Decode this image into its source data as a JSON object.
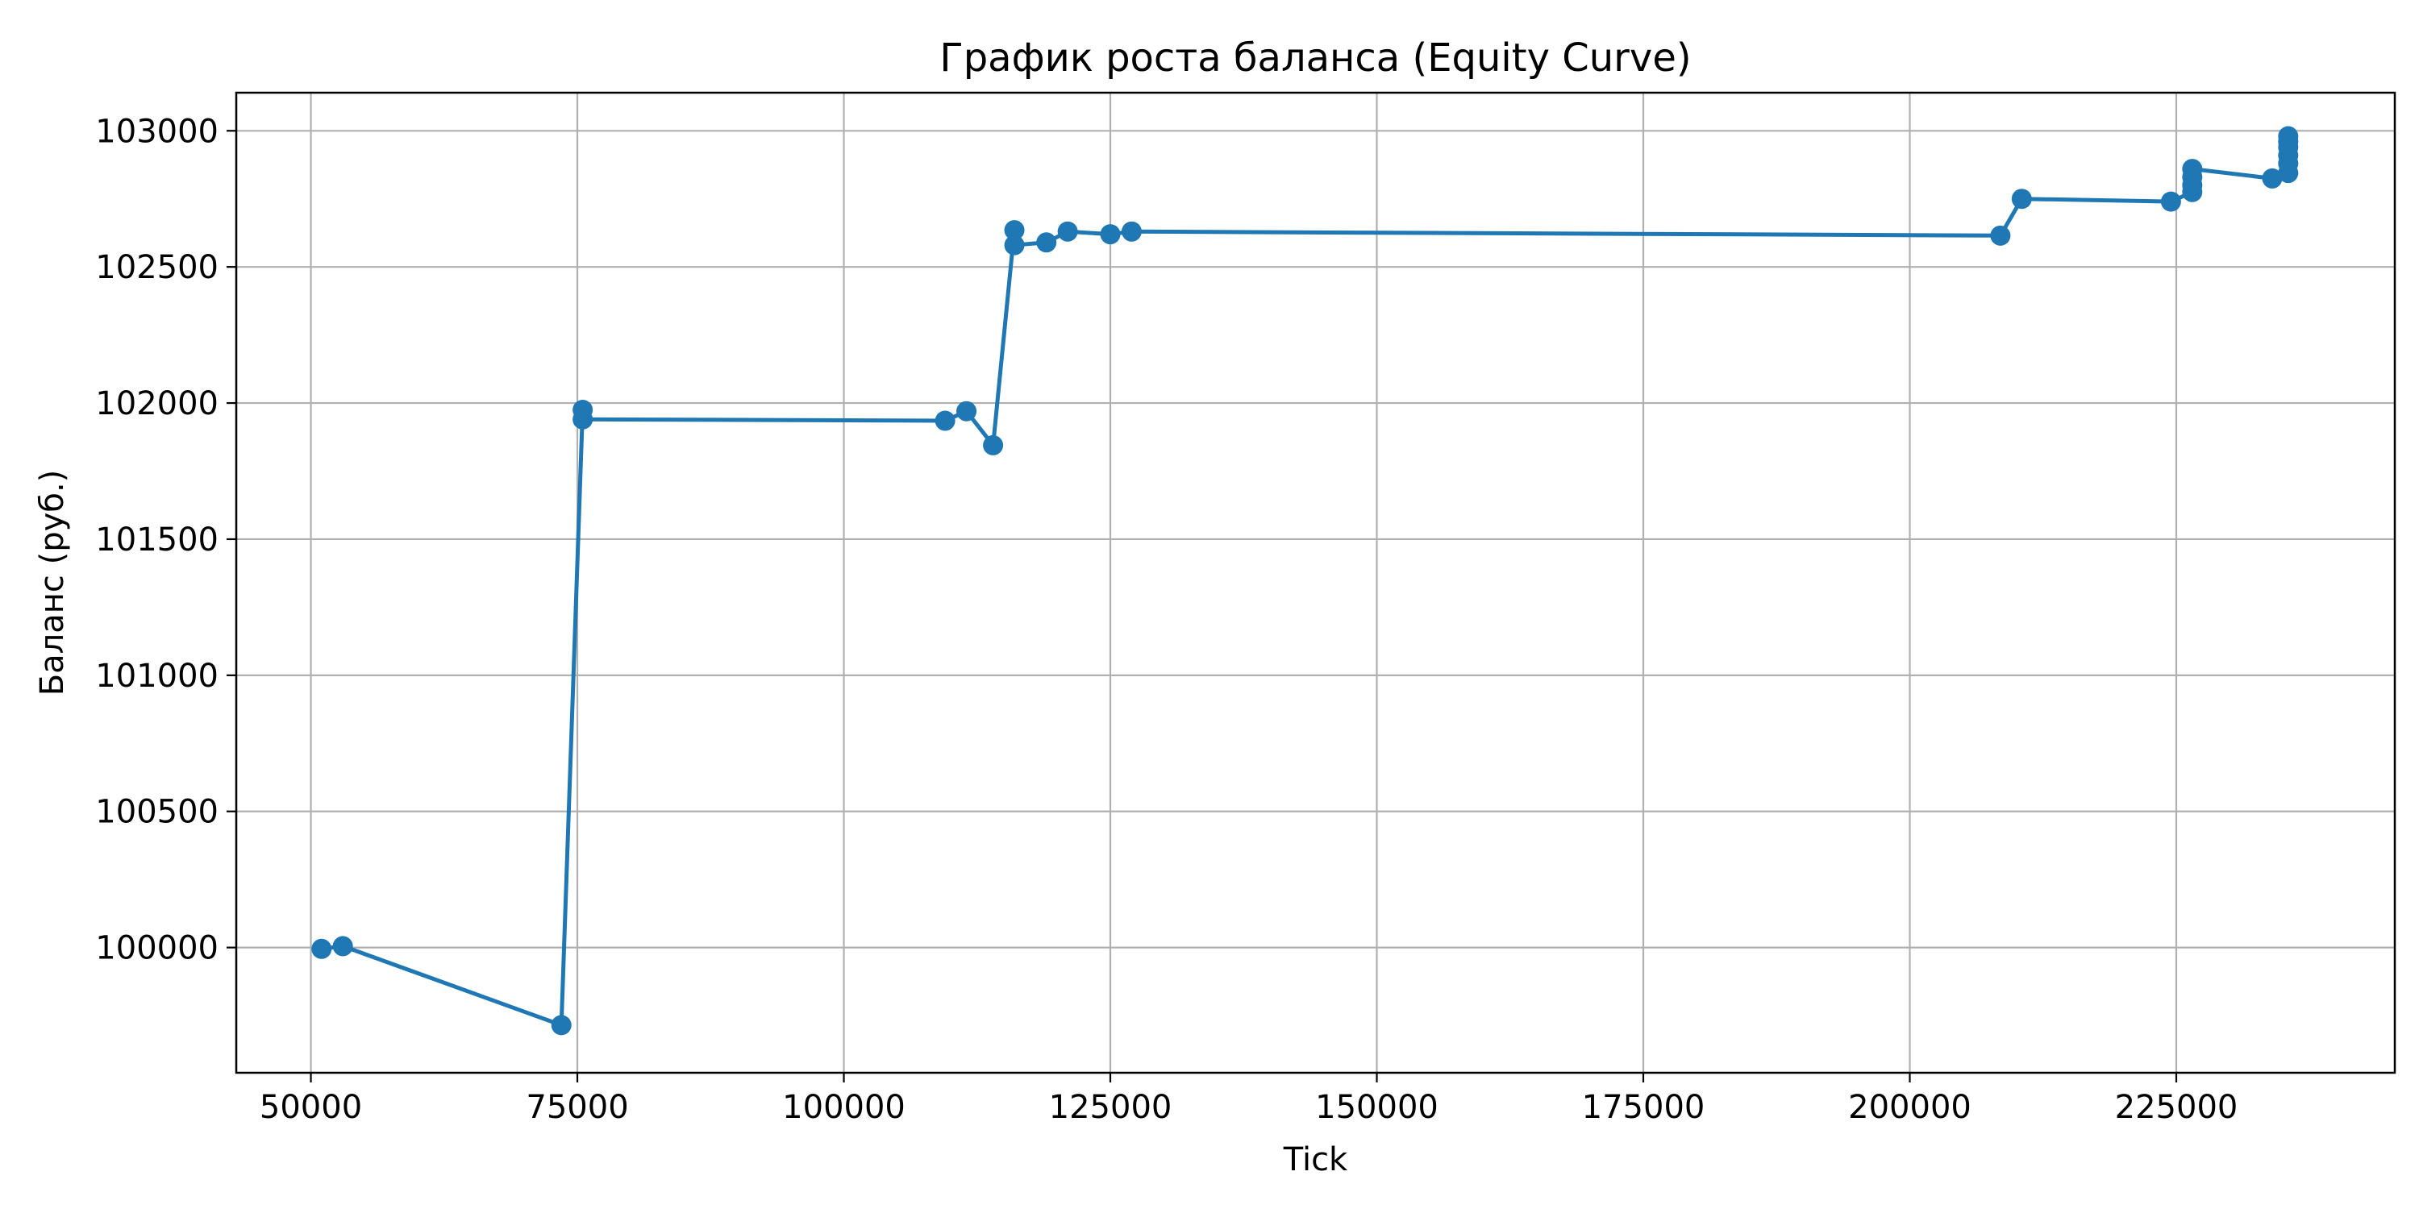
{
  "chart_data": {
    "type": "line",
    "title": "График роста баланса (Equity Curve)",
    "xlabel": "Tick",
    "ylabel": "Баланс (руб.)",
    "xlim": [
      43000,
      245500
    ],
    "ylim": [
      99540,
      103140
    ],
    "xticks": [
      50000,
      75000,
      100000,
      125000,
      150000,
      175000,
      200000,
      225000
    ],
    "yticks": [
      100000,
      100500,
      101000,
      101500,
      102000,
      102500,
      103000
    ],
    "grid": true,
    "legend": "none",
    "series": [
      {
        "color": "#1f77b4",
        "marker": "circle",
        "x": [
          51000,
          53000,
          73500,
          75500,
          75500,
          109500,
          111500,
          114000,
          116000,
          116000,
          119000,
          121000,
          125000,
          127000,
          208500,
          210500,
          224500,
          226500,
          226500,
          226500,
          226500,
          234000,
          235500,
          235500,
          235500,
          235500,
          235500,
          235500
        ],
        "y": [
          99995,
          100005,
          99715,
          101975,
          101940,
          101935,
          101970,
          101845,
          102635,
          102580,
          102590,
          102630,
          102620,
          102630,
          102615,
          102750,
          102740,
          102775,
          102800,
          102830,
          102860,
          102825,
          102845,
          102880,
          102910,
          102940,
          102960,
          102980
        ]
      }
    ]
  }
}
